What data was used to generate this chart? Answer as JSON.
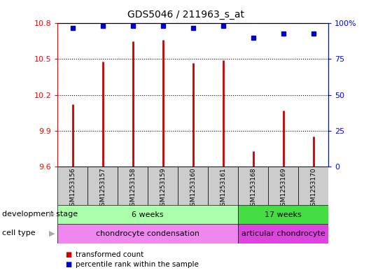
{
  "title": "GDS5046 / 211963_s_at",
  "samples": [
    "GSM1253156",
    "GSM1253157",
    "GSM1253158",
    "GSM1253159",
    "GSM1253160",
    "GSM1253161",
    "GSM1253168",
    "GSM1253169",
    "GSM1253170"
  ],
  "transformed_count": [
    10.12,
    10.48,
    10.65,
    10.66,
    10.47,
    10.49,
    9.73,
    10.07,
    9.85
  ],
  "percentile_rank": [
    97,
    98,
    98,
    98,
    97,
    98,
    90,
    93,
    93
  ],
  "ylim_left": [
    9.6,
    10.8
  ],
  "ylim_right": [
    0,
    100
  ],
  "yticks_left": [
    9.6,
    9.9,
    10.2,
    10.5,
    10.8
  ],
  "yticks_right": [
    0,
    25,
    50,
    75,
    100
  ],
  "bar_color": "#cc0000",
  "dot_color": "#0000cc",
  "bar_baseline": 9.6,
  "development_stage_labels": [
    "6 weeks",
    "17 weeks"
  ],
  "development_stage_split": 6,
  "development_stage_colors": [
    "#aaffaa",
    "#44dd44"
  ],
  "cell_type_labels": [
    "chondrocyte condensation",
    "articular chondrocyte"
  ],
  "cell_type_split": 6,
  "cell_type_colors": [
    "#ee88ee",
    "#dd44dd"
  ],
  "row_label_dev": "development stage",
  "row_label_cell": "cell type",
  "legend_bar_label": "transformed count",
  "legend_dot_label": "percentile rank within the sample",
  "bg_sample_color": "#cccccc",
  "n_samples": 9
}
